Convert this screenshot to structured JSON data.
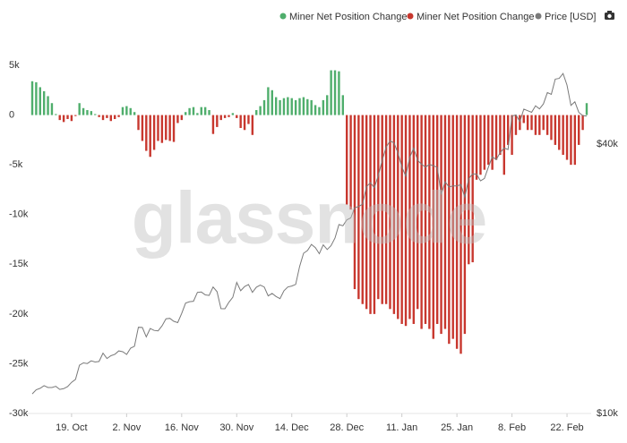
{
  "chart_data": {
    "type": "bar",
    "watermark": "glassnode",
    "categories": [
      "9. Oct",
      "10. Oct",
      "11. Oct",
      "12. Oct",
      "13. Oct",
      "14. Oct",
      "15. Oct",
      "16. Oct",
      "17. Oct",
      "18. Oct",
      "19. Oct",
      "20. Oct",
      "21. Oct",
      "22. Oct",
      "23. Oct",
      "24. Oct",
      "25. Oct",
      "26. Oct",
      "27. Oct",
      "28. Oct",
      "29. Oct",
      "30. Oct",
      "31. Oct",
      "1. Nov",
      "2. Nov",
      "3. Nov",
      "4. Nov",
      "5. Nov",
      "6. Nov",
      "7. Nov",
      "8. Nov",
      "9. Nov",
      "10. Nov",
      "11. Nov",
      "12. Nov",
      "13. Nov",
      "14. Nov",
      "15. Nov",
      "16. Nov",
      "17. Nov",
      "18. Nov",
      "19. Nov",
      "20. Nov",
      "21. Nov",
      "22. Nov",
      "23. Nov",
      "24. Nov",
      "25. Nov",
      "26. Nov",
      "27. Nov",
      "28. Nov",
      "29. Nov",
      "30. Nov",
      "1. Dec",
      "2. Dec",
      "3. Dec",
      "4. Dec",
      "5. Dec",
      "6. Dec",
      "7. Dec",
      "8. Dec",
      "9. Dec",
      "10. Dec",
      "11. Dec",
      "12. Dec",
      "13. Dec",
      "14. Dec",
      "15. Dec",
      "16. Dec",
      "17. Dec",
      "18. Dec",
      "19. Dec",
      "20. Dec",
      "21. Dec",
      "22. Dec",
      "23. Dec",
      "24. Dec",
      "25. Dec",
      "26. Dec",
      "27. Dec",
      "28. Dec",
      "29. Dec",
      "30. Dec",
      "31. Dec",
      "1. Jan",
      "2. Jan",
      "3. Jan",
      "4. Jan",
      "5. Jan",
      "6. Jan",
      "7. Jan",
      "8. Jan",
      "9. Jan",
      "10. Jan",
      "11. Jan",
      "12. Jan",
      "13. Jan",
      "14. Jan",
      "15. Jan",
      "16. Jan",
      "17. Jan",
      "18. Jan",
      "19. Jan",
      "20. Jan",
      "21. Jan",
      "22. Jan",
      "23. Jan",
      "24. Jan",
      "25. Jan",
      "26. Jan",
      "27. Jan",
      "28. Jan",
      "29. Jan",
      "30. Jan",
      "31. Jan",
      "1. Feb",
      "2. Feb",
      "3. Feb",
      "4. Feb",
      "5. Feb",
      "6. Feb",
      "7. Feb",
      "8. Feb",
      "9. Feb",
      "10. Feb",
      "11. Feb",
      "12. Feb",
      "13. Feb",
      "14. Feb",
      "15. Feb",
      "16. Feb",
      "17. Feb",
      "18. Feb",
      "19. Feb",
      "20. Feb",
      "21. Feb",
      "22. Feb",
      "23. Feb",
      "24. Feb",
      "25. Feb",
      "26. Feb",
      "27. Feb"
    ],
    "xticks": [
      "19. Oct",
      "2. Nov",
      "16. Nov",
      "30. Nov",
      "14. Dec",
      "28. Dec",
      "11. Jan",
      "25. Jan",
      "8. Feb",
      "22. Feb"
    ],
    "series": [
      {
        "name": "Miner Net Position Change",
        "color": "#4fae6c",
        "values": [
          3400,
          3300,
          2800,
          2400,
          1900,
          1200,
          100,
          null,
          null,
          null,
          null,
          null,
          1200,
          700,
          500,
          400,
          100,
          null,
          null,
          null,
          null,
          null,
          null,
          800,
          900,
          700,
          300,
          null,
          null,
          null,
          null,
          null,
          null,
          null,
          null,
          null,
          null,
          null,
          null,
          300,
          700,
          800,
          200,
          800,
          800,
          500,
          null,
          null,
          null,
          null,
          null,
          200,
          null,
          null,
          null,
          null,
          null,
          500,
          900,
          1500,
          2800,
          2500,
          1800,
          1500,
          1700,
          1800,
          1700,
          1500,
          1700,
          1800,
          1600,
          1500,
          1000,
          800,
          1500,
          2000,
          4500,
          4500,
          4400,
          2000,
          null,
          null,
          null,
          null,
          null,
          null,
          null,
          null,
          null,
          null,
          null,
          null,
          null,
          null,
          null,
          null,
          null,
          null,
          null,
          null,
          null,
          null,
          null,
          null,
          null,
          null,
          null,
          null,
          null,
          null,
          null,
          null,
          null,
          null,
          null,
          null,
          null,
          null,
          null,
          null,
          null,
          null,
          null,
          null,
          null,
          null,
          null,
          null,
          null,
          null,
          null,
          null,
          null,
          null,
          null,
          null,
          null,
          null,
          null,
          null,
          null,
          1200
        ]
      },
      {
        "name": "Miner Net Position Change",
        "color": "#c8372e",
        "values": [
          null,
          null,
          null,
          null,
          null,
          null,
          null,
          -500,
          -700,
          -400,
          -600,
          -100,
          null,
          null,
          null,
          null,
          null,
          -200,
          -500,
          -300,
          -600,
          -400,
          -200,
          null,
          null,
          null,
          null,
          -1500,
          -2600,
          -3600,
          -4200,
          -3500,
          -2600,
          -2800,
          -2500,
          -2600,
          -2700,
          -800,
          -500,
          null,
          null,
          null,
          null,
          null,
          null,
          null,
          -1900,
          -1200,
          -500,
          -300,
          -200,
          null,
          -300,
          -1300,
          -1500,
          -900,
          -2000,
          null,
          null,
          null,
          null,
          null,
          null,
          null,
          null,
          null,
          null,
          null,
          null,
          null,
          null,
          null,
          null,
          null,
          null,
          null,
          null,
          null,
          null,
          null,
          -9000,
          -9500,
          -17500,
          -18500,
          -19000,
          -19500,
          -20000,
          -20000,
          -18500,
          -19000,
          -19000,
          -19500,
          -20000,
          -20500,
          -21000,
          -21200,
          -20500,
          -21000,
          -19500,
          -21500,
          -21000,
          -21500,
          -22500,
          -21000,
          -22000,
          -21500,
          -23000,
          -22500,
          -23500,
          -24000,
          -22000,
          -15000,
          -14800,
          -6500,
          -6000,
          -5500,
          -5000,
          -5500,
          -4500,
          -4000,
          -6000,
          -3000,
          -4000,
          -2000,
          -1500,
          -800,
          -1500,
          -1500,
          -2000,
          -2000,
          -1500,
          -2000,
          -2500,
          -3000,
          -3500,
          -4000,
          -4500,
          -5000,
          -5000,
          -3000,
          -1500,
          null
        ]
      },
      {
        "name": "Price [USD]",
        "color": "#7a7a7a",
        "type": "line",
        "axis": "y2",
        "values": [
          11060,
          11300,
          11380,
          11540,
          11430,
          11430,
          11500,
          11320,
          11360,
          11480,
          11740,
          11920,
          12820,
          12970,
          12930,
          13110,
          13030,
          13070,
          13640,
          13270,
          13460,
          13560,
          13800,
          13740,
          13550,
          14000,
          14130,
          15580,
          15570,
          14830,
          15480,
          15330,
          15300,
          15700,
          16280,
          16320,
          16070,
          15960,
          16730,
          17650,
          17780,
          17820,
          18650,
          18680,
          18410,
          18360,
          19170,
          18720,
          17150,
          17140,
          17720,
          18180,
          19630,
          18800,
          19220,
          19420,
          18650,
          19150,
          19360,
          19170,
          18320,
          18550,
          18260,
          18060,
          18800,
          19170,
          19270,
          19430,
          21310,
          22810,
          23140,
          23870,
          23480,
          22750,
          23820,
          23250,
          23720,
          24660,
          26440,
          26270,
          27080,
          27360,
          28840,
          29000,
          29370,
          32130,
          32780,
          31970,
          33990,
          36820,
          39370,
          40670,
          40240,
          38240,
          35540,
          33920,
          37320,
          39190,
          36830,
          36070,
          35550,
          36010,
          35810,
          35480,
          30850,
          32950,
          32080,
          32260,
          32250,
          32470,
          30430,
          33470,
          34320,
          34270,
          33110,
          33520,
          35510,
          37470,
          36930,
          38290,
          39200,
          38900,
          46200,
          46480,
          44920,
          47910,
          47500,
          47110,
          48720,
          47940,
          49200,
          52150,
          51680,
          55890,
          56100,
          57540,
          54210,
          48820,
          49710,
          47090,
          46340,
          46190
        ]
      }
    ],
    "ylim": [
      -30000,
      5000
    ],
    "yticks": [
      {
        "value": 5000,
        "label": "5k"
      },
      0,
      {
        "value": -5000,
        "label": "-5k"
      },
      {
        "value": -10000,
        "label": "-10k"
      },
      {
        "value": -15000,
        "label": "-15k"
      },
      {
        "value": -20000,
        "label": "-20k"
      },
      {
        "value": -25000,
        "label": "-25k"
      },
      {
        "value": -30000,
        "label": "-30k"
      }
    ],
    "y2lim": [
      10000,
      60000
    ],
    "y2scale": "log",
    "y2ticks": [
      {
        "value": 10000,
        "label": "$10k"
      },
      {
        "value": 40000,
        "label": "$40k"
      }
    ],
    "grid": false,
    "legend": "top-right"
  }
}
